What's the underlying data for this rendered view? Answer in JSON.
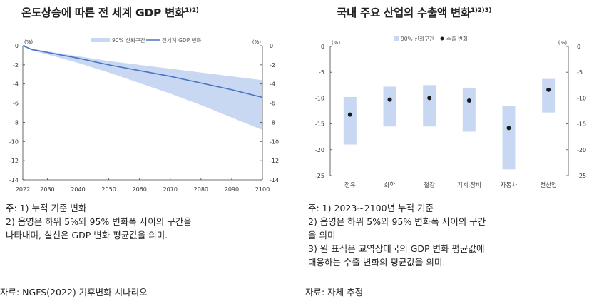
{
  "chart_data": [
    {
      "type": "line",
      "title": "온도상승에 따른 전 세계 GDP 변화",
      "title_sup": "1)2)",
      "unit_left": "(%)",
      "unit_right": "(%)",
      "legend_band": "90% 신뢰구간",
      "legend_line": "전세계 GDP 변화",
      "legend_position": "top-center",
      "xlim": [
        2022,
        2100
      ],
      "ylim": [
        -14,
        0
      ],
      "xticks": [
        2022,
        2030,
        2040,
        2050,
        2060,
        2070,
        2080,
        2090,
        2100
      ],
      "yticks": [
        0,
        -2,
        -4,
        -6,
        -8,
        -10,
        -12,
        -14
      ],
      "grid": false,
      "x": [
        2022,
        2025,
        2030,
        2040,
        2050,
        2060,
        2070,
        2080,
        2090,
        2100
      ],
      "series": [
        {
          "name": "전세계 GDP 변화",
          "values": [
            0,
            -0.4,
            -0.7,
            -1.3,
            -2.0,
            -2.6,
            -3.2,
            -3.9,
            -4.6,
            -5.4
          ]
        },
        {
          "name": "90% 신뢰구간 상단",
          "values": [
            0,
            -0.3,
            -0.6,
            -1.1,
            -1.6,
            -2.0,
            -2.4,
            -2.8,
            -3.2,
            -3.6
          ]
        },
        {
          "name": "90% 신뢰구간 하단",
          "values": [
            0,
            -0.5,
            -0.9,
            -1.8,
            -2.8,
            -3.9,
            -5.0,
            -6.2,
            -7.5,
            -8.8
          ]
        }
      ],
      "colors": {
        "line": "#4a73c4",
        "band": "#c8d8f2"
      }
    },
    {
      "type": "bar",
      "title": "국내 주요 산업의 수출액 변화",
      "title_sup": "1)2)3)",
      "unit_left": "(%)",
      "unit_right": "(%)",
      "legend_band": "90% 신뢰구간",
      "legend_point": "수출 변화",
      "legend_position": "top-center",
      "ylim": [
        -25,
        0
      ],
      "yticks": [
        0,
        -5,
        -10,
        -15,
        -20,
        -25
      ],
      "grid": false,
      "categories": [
        "정유",
        "화학",
        "철강",
        "기계,장비",
        "자동차",
        "전산업"
      ],
      "range_low": [
        -19.0,
        -15.5,
        -15.5,
        -16.5,
        -23.8,
        -12.8
      ],
      "range_high": [
        -9.8,
        -7.8,
        -7.5,
        -8.0,
        -11.5,
        -6.3
      ],
      "values": [
        -13.2,
        -10.3,
        -10.0,
        -10.5,
        -15.8,
        -8.4
      ],
      "colors": {
        "bar": "#c8d8f2",
        "point": "#1a1a1a"
      }
    }
  ],
  "notes_left": {
    "lines": [
      "주: 1) 누적 기준 변화",
      "      2) 음영은 하위 5%와 95% 변화폭 사이의 구간을",
      "          나타내며, 실선은 GDP 변화 평균값을 의미."
    ],
    "source": "자료: NGFS(2022) 기후변화 시나리오"
  },
  "notes_right": {
    "lines": [
      "주: 1) 2023~2100년 누적 기준",
      "      2) 음영은 하위 5%와 95% 변화폭 사이의 구간",
      "          을 의미",
      "      3) 원 표식은 교역상대국의 GDP 변화 평균값에",
      "          대응하는 수출 변화의 평균값을 의미."
    ],
    "source": "자료: 자체 추정"
  }
}
